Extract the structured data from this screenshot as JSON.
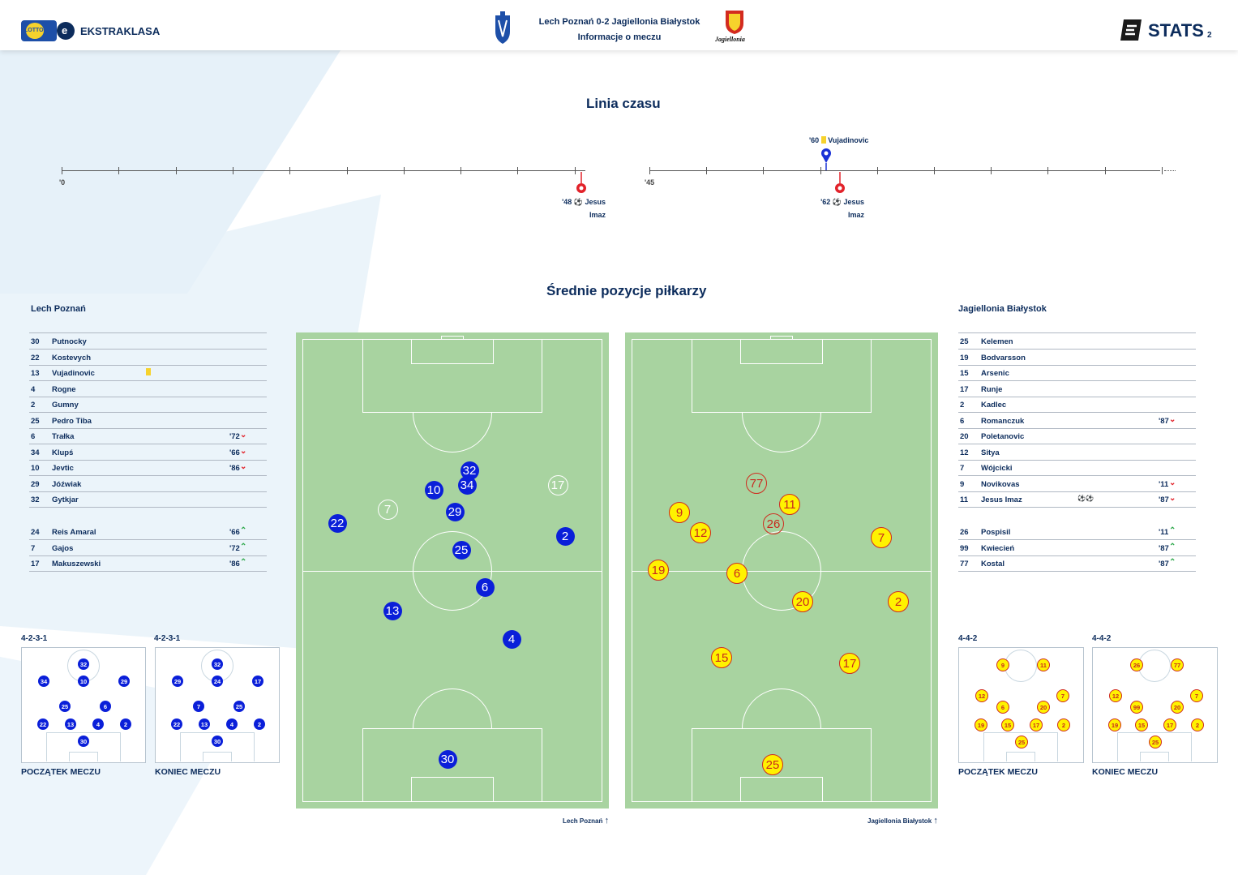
{
  "header": {
    "league_logo_text": "EKSTRAKLASA",
    "lotto_text": "LOTTO",
    "match_title": "Lech Poznań 0-2 Jagiellonia Białystok",
    "subtitle": "Informacje o meczu",
    "away_crest_text": "Jagiellonia",
    "stats_brand": "STATS",
    "page_number": "2"
  },
  "timeline": {
    "title": "Linia czasu",
    "first_half_start": "'0",
    "second_half_start": "'45",
    "events": [
      {
        "minute": "'48",
        "player_line1": "Jesus",
        "player_line2": "Imaz",
        "type": "goal",
        "team": "away"
      },
      {
        "minute": "'60",
        "player_line1": "Vujadinovic",
        "player_line2": "",
        "type": "yellow",
        "team": "home"
      },
      {
        "minute": "'62",
        "player_line1": "Jesus",
        "player_line2": "Imaz",
        "type": "goal",
        "team": "away"
      }
    ]
  },
  "positions": {
    "title": "Średnie pozycje piłkarzy",
    "home_foot": "Lech Poznań",
    "away_foot": "Jagiellonia Białystok"
  },
  "home": {
    "name": "Lech Poznań",
    "starters": [
      {
        "num": "30",
        "name": "Putnocky",
        "minute": "",
        "sub": "",
        "card": false
      },
      {
        "num": "22",
        "name": "Kostevych",
        "minute": "",
        "sub": "",
        "card": false
      },
      {
        "num": "13",
        "name": "Vujadinovic",
        "minute": "",
        "sub": "",
        "card": true
      },
      {
        "num": "4",
        "name": "Rogne",
        "minute": "",
        "sub": "",
        "card": false
      },
      {
        "num": "2",
        "name": "Gumny",
        "minute": "",
        "sub": "",
        "card": false
      },
      {
        "num": "25",
        "name": "Pedro Tiba",
        "minute": "",
        "sub": "",
        "card": false
      },
      {
        "num": "6",
        "name": "Trałka",
        "minute": "'72",
        "sub": "out",
        "card": false
      },
      {
        "num": "34",
        "name": "Klupś",
        "minute": "'66",
        "sub": "out",
        "card": false
      },
      {
        "num": "10",
        "name": "Jevtic",
        "minute": "'86",
        "sub": "out",
        "card": false
      },
      {
        "num": "29",
        "name": "Jóźwiak",
        "minute": "",
        "sub": "",
        "card": false
      },
      {
        "num": "32",
        "name": "Gytkjar",
        "minute": "",
        "sub": "",
        "card": false
      }
    ],
    "subs": [
      {
        "num": "24",
        "name": "Reis Amaral",
        "minute": "'66",
        "sub": "in"
      },
      {
        "num": "7",
        "name": "Gajos",
        "minute": "'72",
        "sub": "in"
      },
      {
        "num": "17",
        "name": "Makuszewski",
        "minute": "'86",
        "sub": "in"
      }
    ],
    "formation_start": "4-2-3-1",
    "formation_end": "4-2-3-1",
    "start_caption": "POCZĄTEK MECZU",
    "end_caption": "KONIEC MECZU",
    "mini_start": [
      "32",
      "34",
      "10",
      "29",
      "25",
      "6",
      "22",
      "13",
      "4",
      "2",
      "30"
    ],
    "mini_end": [
      "32",
      "29",
      "24",
      "17",
      "7",
      "25",
      "22",
      "13",
      "4",
      "2",
      "30"
    ],
    "avg_positions": [
      "32",
      "10",
      "34",
      "17",
      "29",
      "7",
      "22",
      "2",
      "25",
      "6",
      "13",
      "4",
      "30"
    ]
  },
  "away": {
    "name": "Jagiellonia Białystok",
    "starters": [
      {
        "num": "25",
        "name": "Kelemen",
        "minute": "",
        "sub": "",
        "goals": ""
      },
      {
        "num": "19",
        "name": "Bodvarsson",
        "minute": "",
        "sub": "",
        "goals": ""
      },
      {
        "num": "15",
        "name": "Arsenic",
        "minute": "",
        "sub": "",
        "goals": ""
      },
      {
        "num": "17",
        "name": "Runje",
        "minute": "",
        "sub": "",
        "goals": ""
      },
      {
        "num": "2",
        "name": "Kadlec",
        "minute": "",
        "sub": "",
        "goals": ""
      },
      {
        "num": "6",
        "name": "Romanczuk",
        "minute": "'87",
        "sub": "out",
        "goals": ""
      },
      {
        "num": "20",
        "name": "Poletanovic",
        "minute": "",
        "sub": "",
        "goals": ""
      },
      {
        "num": "12",
        "name": "Sitya",
        "minute": "",
        "sub": "",
        "goals": ""
      },
      {
        "num": "7",
        "name": "Wójcicki",
        "minute": "",
        "sub": "",
        "goals": ""
      },
      {
        "num": "9",
        "name": "Novikovas",
        "minute": "'11",
        "sub": "out",
        "goals": ""
      },
      {
        "num": "11",
        "name": "Jesus Imaz",
        "minute": "'87",
        "sub": "out",
        "goals": "⚽⚽"
      }
    ],
    "subs": [
      {
        "num": "26",
        "name": "Pospisil",
        "minute": "'11",
        "sub": "in"
      },
      {
        "num": "99",
        "name": "Kwiecień",
        "minute": "'87",
        "sub": "in"
      },
      {
        "num": "77",
        "name": "Kostal",
        "minute": "'87",
        "sub": "in"
      }
    ],
    "formation_start": "4-4-2",
    "formation_end": "4-4-2",
    "start_caption": "POCZĄTEK MECZU",
    "end_caption": "KONIEC MECZU",
    "mini_start": [
      "9",
      "11",
      "12",
      "6",
      "20",
      "7",
      "19",
      "15",
      "17",
      "2",
      "25"
    ],
    "mini_end": [
      "26",
      "77",
      "12",
      "99",
      "20",
      "7",
      "19",
      "15",
      "17",
      "2",
      "25"
    ],
    "avg_positions": [
      "77",
      "11",
      "9",
      "26",
      "12",
      "7",
      "19",
      "6",
      "20",
      "2",
      "15",
      "17",
      "25"
    ]
  },
  "colors": {
    "navy": "#0c2c5c",
    "lech_blue": "#0a1fd9",
    "jaga_yellow": "#fff200",
    "jaga_red": "#c8281e",
    "pitch_green": "#a8d3a0"
  }
}
